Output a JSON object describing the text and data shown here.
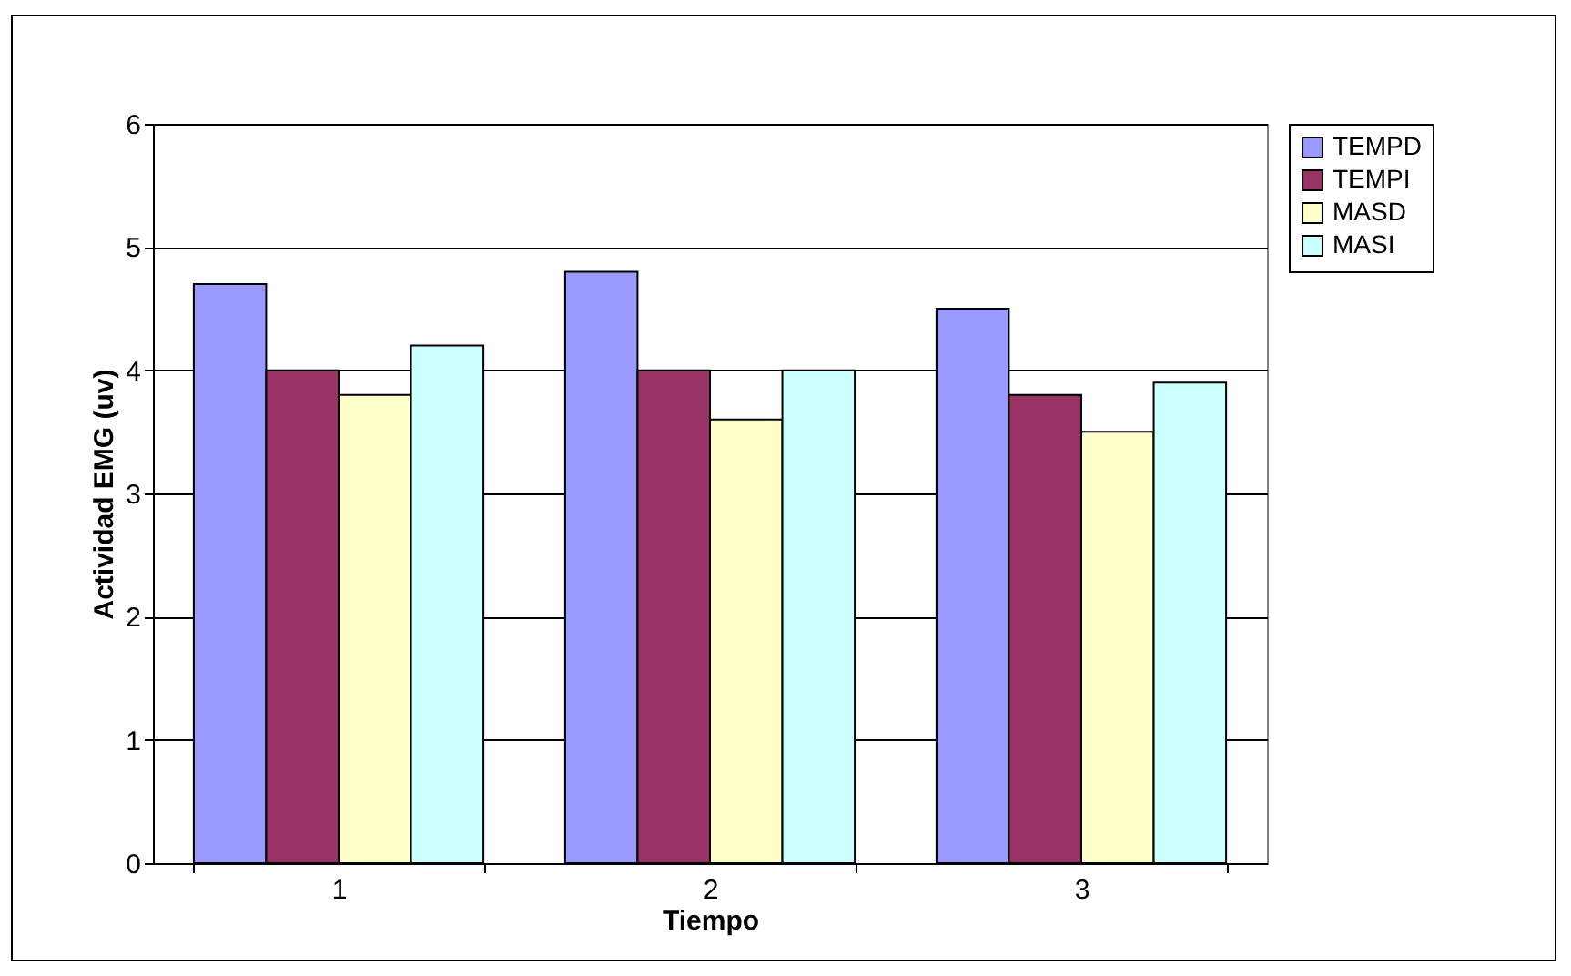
{
  "chart_data": {
    "type": "bar",
    "xlabel": "Tiempo",
    "ylabel": "Actividad EMG (uv)",
    "categories": [
      "1",
      "2",
      "3"
    ],
    "series": [
      {
        "name": "TEMPD",
        "color": "#9999ff",
        "values": [
          4.7,
          4.8,
          4.5
        ]
      },
      {
        "name": "TEMPI",
        "color": "#993366",
        "values": [
          4.0,
          4.0,
          3.8
        ]
      },
      {
        "name": "MASD",
        "color": "#ffffcc",
        "values": [
          3.8,
          3.6,
          3.5
        ]
      },
      {
        "name": "MASI",
        "color": "#ccffff",
        "values": [
          4.2,
          4.0,
          3.9
        ]
      }
    ],
    "ylim": [
      0,
      6
    ],
    "yticks": [
      0,
      1,
      2,
      3,
      4,
      5,
      6
    ],
    "grid": "y",
    "legend": "right"
  }
}
